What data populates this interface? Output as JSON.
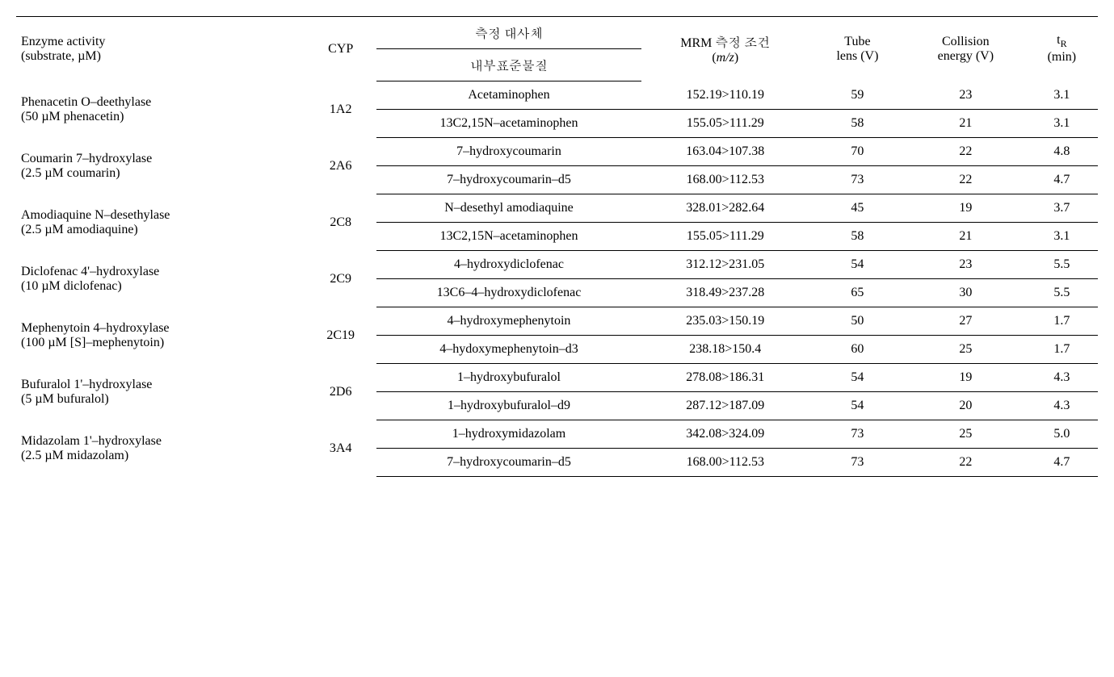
{
  "table": {
    "type": "table",
    "background_color": "#ffffff",
    "text_color": "#000000",
    "border_color": "#000000",
    "font_family": "Times New Roman, Batang, serif",
    "font_size_pt": 14,
    "headers": {
      "enzyme": "Enzyme activity",
      "enzyme_sub": "(substrate, µM)",
      "cyp": "CYP",
      "metabolite_top": "측정 대사체",
      "metabolite_bottom": "내부표준물질",
      "mrm": "MRM 측정 조건",
      "mrm_sub_prefix": "(",
      "mrm_sub_mz": "m/z",
      "mrm_sub_suffix": ")",
      "tube_top": "Tube",
      "tube_bottom": "lens (V)",
      "ce_top": "Collision",
      "ce_bottom": "energy (V)",
      "tr_prefix": "t",
      "tr_sub": "R",
      "tr_unit": "(min)"
    },
    "groups": [
      {
        "enzyme": "Phenacetin O–deethylase",
        "substrate": "(50 µM phenacetin)",
        "cyp": "1A2",
        "rows": [
          {
            "metab": "Acetaminophen",
            "mrm": "152.19>110.19",
            "tube": "59",
            "ce": "23",
            "tr": "3.1"
          },
          {
            "metab": "13C2,15N–acetaminophen",
            "mrm": "155.05>111.29",
            "tube": "58",
            "ce": "21",
            "tr": "3.1"
          }
        ]
      },
      {
        "enzyme": "Coumarin 7–hydroxylase",
        "substrate": "(2.5 µM coumarin)",
        "cyp": "2A6",
        "rows": [
          {
            "metab": "7–hydroxycoumarin",
            "mrm": "163.04>107.38",
            "tube": "70",
            "ce": "22",
            "tr": "4.8"
          },
          {
            "metab": "7–hydroxycoumarin–d5",
            "mrm": "168.00>112.53",
            "tube": "73",
            "ce": "22",
            "tr": "4.7"
          }
        ]
      },
      {
        "enzyme": "Amodiaquine N–desethylase",
        "substrate": "(2.5 µM amodiaquine)",
        "cyp": "2C8",
        "rows": [
          {
            "metab": "N–desethyl amodiaquine",
            "mrm": "328.01>282.64",
            "tube": "45",
            "ce": "19",
            "tr": "3.7"
          },
          {
            "metab": "13C2,15N–acetaminophen",
            "mrm": "155.05>111.29",
            "tube": "58",
            "ce": "21",
            "tr": "3.1"
          }
        ]
      },
      {
        "enzyme": "Diclofenac 4'–hydroxylase",
        "substrate": "(10 µM diclofenac)",
        "cyp": "2C9",
        "rows": [
          {
            "metab": "4–hydroxydiclofenac",
            "mrm": "312.12>231.05",
            "tube": "54",
            "ce": "23",
            "tr": "5.5"
          },
          {
            "metab": "13C6–4–hydroxydiclofenac",
            "mrm": "318.49>237.28",
            "tube": "65",
            "ce": "30",
            "tr": "5.5"
          }
        ]
      },
      {
        "enzyme": "Mephenytoin 4–hydroxylase",
        "substrate": "(100 µM [S]–mephenytoin)",
        "cyp": "2C19",
        "rows": [
          {
            "metab": "4–hydroxymephenytoin",
            "mrm": "235.03>150.19",
            "tube": "50",
            "ce": "27",
            "tr": "1.7"
          },
          {
            "metab": "4–hydoxymephenytoin–d3",
            "mrm": "238.18>150.4",
            "tube": "60",
            "ce": "25",
            "tr": "1.7"
          }
        ]
      },
      {
        "enzyme": "Bufuralol 1'–hydroxylase",
        "substrate": "(5 µM bufuralol)",
        "cyp": "2D6",
        "rows": [
          {
            "metab": "1–hydroxybufuralol",
            "mrm": "278.08>186.31",
            "tube": "54",
            "ce": "19",
            "tr": "4.3"
          },
          {
            "metab": "1–hydroxybufuralol–d9",
            "mrm": "287.12>187.09",
            "tube": "54",
            "ce": "20",
            "tr": "4.3"
          }
        ]
      },
      {
        "enzyme": "Midazolam 1'–hydroxylase",
        "substrate": "(2.5 µM midazolam)",
        "cyp": "3A4",
        "rows": [
          {
            "metab": "1–hydroxymidazolam",
            "mrm": "342.08>324.09",
            "tube": "73",
            "ce": "25",
            "tr": "5.0"
          },
          {
            "metab": "7–hydroxycoumarin–d5",
            "mrm": "168.00>112.53",
            "tube": "73",
            "ce": "22",
            "tr": "4.7"
          }
        ]
      }
    ]
  }
}
